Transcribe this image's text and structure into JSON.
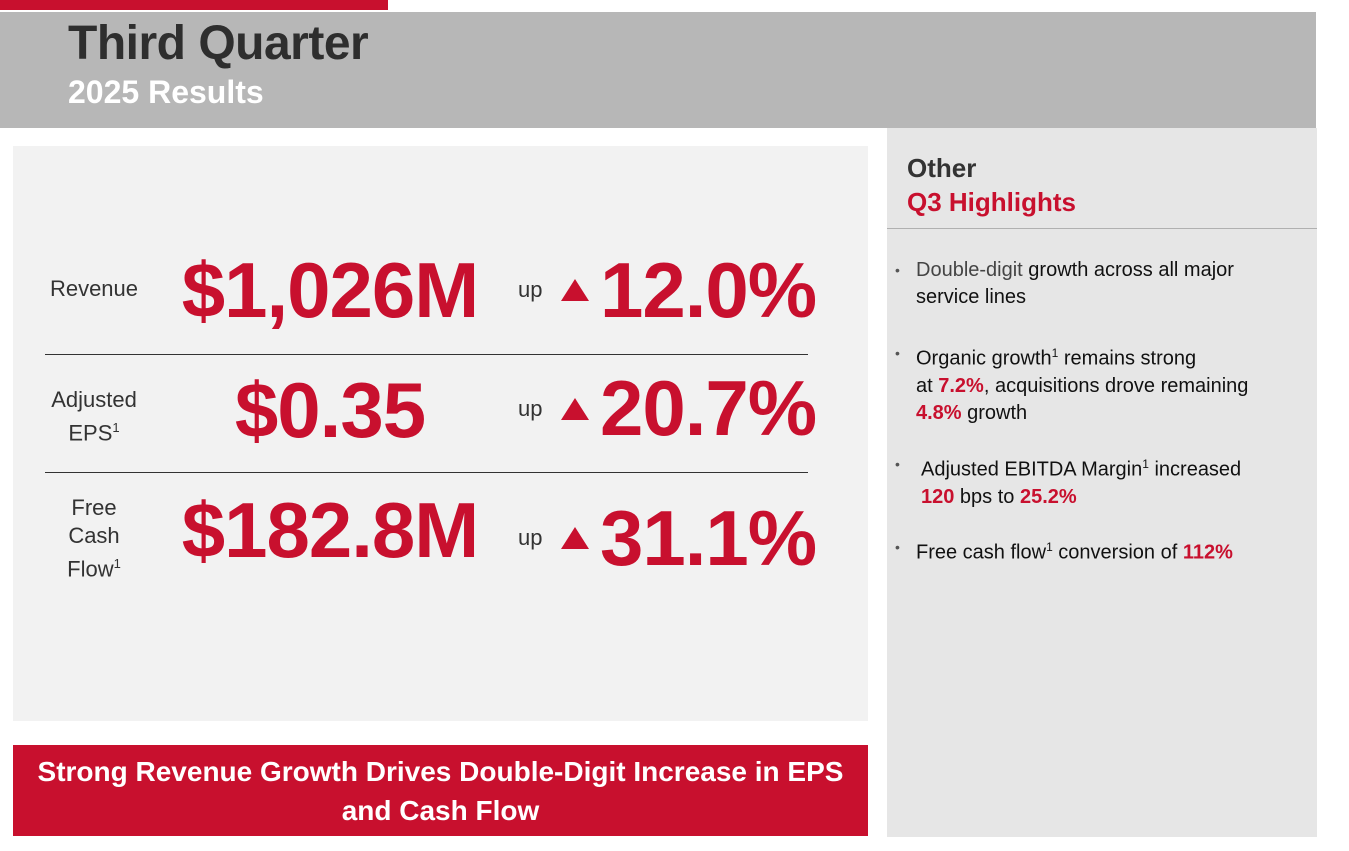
{
  "header": {
    "title": "Third Quarter",
    "subtitle": "2025 Results"
  },
  "metrics": [
    {
      "label_lines": [
        "Revenue"
      ],
      "value": "$1,026M",
      "up_text": "up",
      "change": "12.0%"
    },
    {
      "label_lines": [
        "Adjusted",
        "EPS"
      ],
      "footnote": "1",
      "value": "$0.35",
      "up_text": "up",
      "change": "20.7%"
    },
    {
      "label_lines": [
        "Free",
        "Cash",
        "Flow"
      ],
      "footnote": "1",
      "value": "$182.8M",
      "up_text": "up",
      "change": "31.1%"
    }
  ],
  "banner": {
    "text": "Strong Revenue Growth Drives Double-Digit Increase in EPS and Cash Flow"
  },
  "sidebar": {
    "heading_line1": "Other",
    "heading_line2": "Q3 Highlights",
    "bullets": [
      {
        "parts": [
          "Double-digit",
          " growth across all major",
          "service lines"
        ]
      },
      {
        "parts": [
          "Organic growth",
          "1",
          " remains strong",
          "at ",
          "7.2%",
          ", acquisitions drove remaining",
          "4.8%",
          " growth"
        ]
      },
      {
        "parts": [
          "Adjusted EBITDA Margin",
          "1",
          " increased",
          "120",
          " bps to ",
          "25.2%"
        ]
      },
      {
        "parts": [
          "Free cash flow",
          "1",
          " conversion of ",
          "112%"
        ]
      }
    ],
    "bullet_symbol": "•"
  },
  "colors": {
    "accent": "#c8102e",
    "header_band": "#b7b7b7",
    "panel": "#f2f2f2",
    "sidebar": "#e6e6e6"
  },
  "icons": {
    "up_arrow": "triangle-up-icon"
  }
}
